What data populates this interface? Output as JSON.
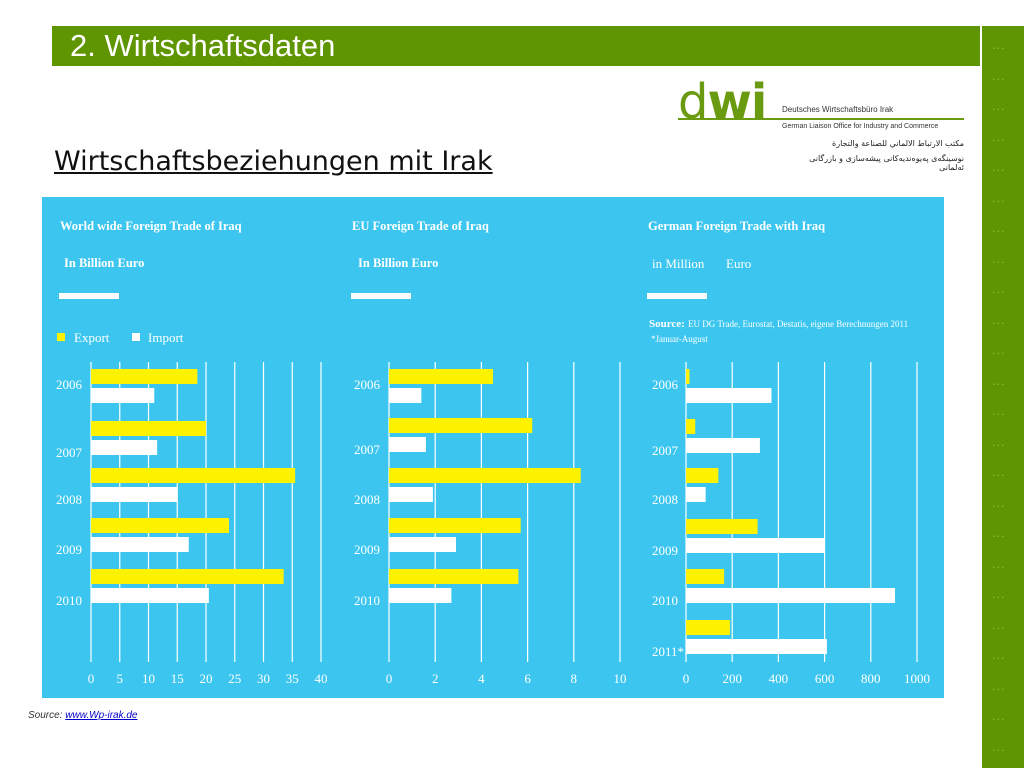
{
  "slide": {
    "title": "2. Wirtschaftsdaten",
    "subtitle": "Wirtschaftsbeziehungen mit Irak",
    "source_prefix": "Source:",
    "source_link": "www.Wp-irak.de"
  },
  "logo": {
    "mark_d": "d",
    "mark_wi": "wi",
    "line1": "Deutsches Wirtschaftsbüro Irak",
    "line2": "German Liaison Office for Industry and Commerce",
    "line3": "مكتب الارتباط الالماني للصناعة والتجارة",
    "line4": "نوسینگەی پەیوەندیەکانی پیشەسازی و بازرگانی ئەلمانی"
  },
  "colors": {
    "panel": "#3cc6ef",
    "export": "#fff200",
    "import": "#ffffff",
    "title_bar": "#5f9500"
  },
  "legend": {
    "export": "Export",
    "import": "Import"
  },
  "chart3_source": {
    "label": "Source:",
    "text": "EU DG Trade, Eurostat, Destatis, eigene Berechnungen 2011",
    "note": "*Januar-August"
  },
  "chart_data": [
    {
      "type": "bar",
      "orientation": "horizontal",
      "title": "World wide Foreign Trade of Iraq",
      "subtitle": "In Billion Euro",
      "categories": [
        "2006",
        "2007",
        "2008",
        "2009",
        "2010"
      ],
      "series": [
        {
          "name": "Export",
          "values": [
            18.5,
            20,
            35.5,
            24,
            33.5
          ]
        },
        {
          "name": "Import",
          "values": [
            11,
            11.5,
            15,
            17,
            20.5
          ]
        }
      ],
      "xlim": [
        0,
        40
      ],
      "xticks": [
        "0",
        "5",
        "10",
        "15",
        "20",
        "25",
        "30",
        "35",
        "40"
      ],
      "grid": true,
      "legend": "top-left"
    },
    {
      "type": "bar",
      "orientation": "horizontal",
      "title": "EU Foreign Trade of Iraq",
      "subtitle": "In Billion Euro",
      "categories": [
        "2006",
        "2007",
        "2008",
        "2009",
        "2010"
      ],
      "series": [
        {
          "name": "Export",
          "values": [
            4.5,
            6.2,
            8.3,
            5.7,
            5.6
          ]
        },
        {
          "name": "Import",
          "values": [
            1.4,
            1.6,
            1.9,
            2.9,
            2.7
          ]
        }
      ],
      "xlim": [
        0,
        10
      ],
      "xticks": [
        "0",
        "2",
        "4",
        "6",
        "8",
        "10"
      ],
      "grid": true
    },
    {
      "type": "bar",
      "orientation": "horizontal",
      "title": "German Foreign Trade with Iraq",
      "subtitle": "in Million",
      "subtitle_unit": "Euro",
      "categories": [
        "2006",
        "2007",
        "2008",
        "2009",
        "2010",
        "2011*"
      ],
      "series": [
        {
          "name": "Export",
          "values": [
            15,
            40,
            140,
            310,
            165,
            190
          ]
        },
        {
          "name": "Import",
          "values": [
            370,
            320,
            85,
            600,
            905,
            610
          ]
        }
      ],
      "xlim": [
        0,
        1000
      ],
      "xticks": [
        "0",
        "200",
        "400",
        "600",
        "800",
        "1000"
      ],
      "grid": true
    }
  ]
}
